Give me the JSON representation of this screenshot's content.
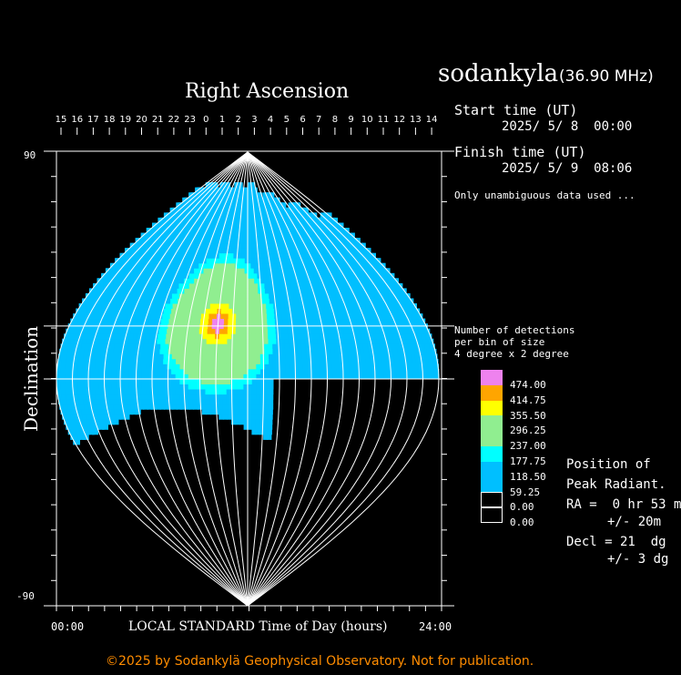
{
  "header": {
    "station": "sodankyla",
    "frequency": "(36.90 MHz)",
    "top_axis_title": "Right Ascension",
    "start_label": "Start time (UT)",
    "start_value": "2025/ 5/ 8  00:00",
    "finish_label": "Finish time (UT)",
    "finish_value": "2025/ 5/ 9  08:06",
    "note": "Only unambiguous data used ...",
    "bin_note_1": "Number of detections",
    "bin_note_2": "per bin of size",
    "bin_note_3": "4 degree x 2 degree"
  },
  "legend": {
    "entries": [
      {
        "value": "474.00",
        "color": "#ee82ee"
      },
      {
        "value": "414.75",
        "color": "#ffa500"
      },
      {
        "value": "355.50",
        "color": "#ffff00"
      },
      {
        "value": "296.25",
        "color": "#90ee90"
      },
      {
        "value": "237.00",
        "color": "#90ee90"
      },
      {
        "value": "177.75",
        "color": "#00ffff"
      },
      {
        "value": "118.50",
        "color": "#00bfff"
      },
      {
        "value": "59.25",
        "color": "#00bfff"
      },
      {
        "value": "0.00",
        "color": "#000000"
      },
      {
        "value": "0.00",
        "color": "#000000"
      }
    ]
  },
  "peak": {
    "title_1": "Position of",
    "title_2": "Peak Radiant.",
    "ra": "RA =  0 hr 53 m",
    "ra_err": "+/- 20m",
    "decl": "Decl = 21  dg",
    "decl_err": "+/- 3 dg"
  },
  "footer": {
    "copyright": "©2025 by Sodankylä Geophysical Observatory. Not for publication."
  },
  "chart_data": {
    "type": "heatmap",
    "title": "Right Ascension",
    "xlabel": "LOCAL STANDARD Time of Day (hours)",
    "ylabel": "Declination",
    "x_tick_left": "00:00",
    "x_tick_right": "24:00",
    "y_tick_top": "90",
    "y_tick_bottom": "-90",
    "ylim": [
      -90,
      90
    ],
    "ra_tick_labels": [
      "15",
      "16",
      "17",
      "18",
      "19",
      "20",
      "21",
      "22",
      "23",
      "0",
      "1",
      "2",
      "3",
      "4",
      "5",
      "6",
      "7",
      "8",
      "9",
      "10",
      "11",
      "12",
      "13",
      "14"
    ],
    "peak_ra_hours": 0.88,
    "peak_decl": 21,
    "colors": {
      "low": "#00bfff",
      "mid": "#00ffff",
      "high": "#90ee90",
      "higher": "#ffff00",
      "peak": "#ffa500",
      "top": "#ee82ee"
    }
  }
}
